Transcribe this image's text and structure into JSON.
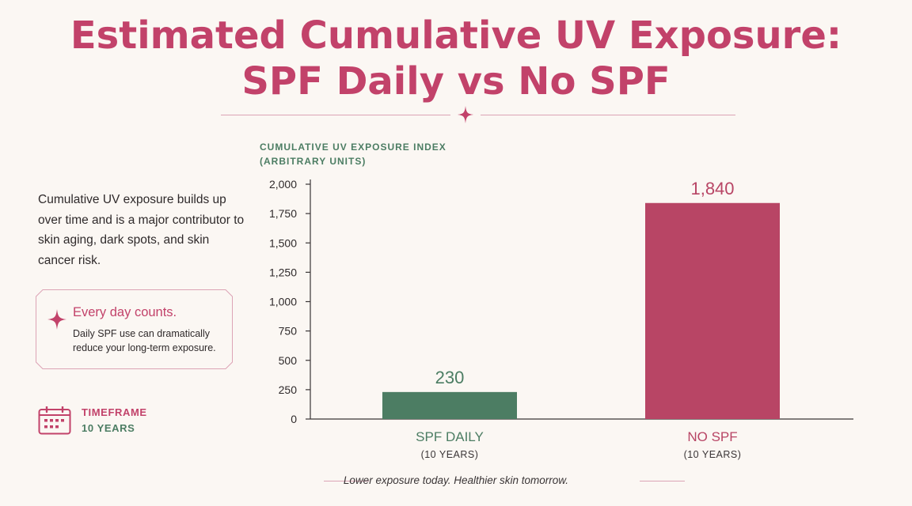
{
  "title_line1": "Estimated Cumulative UV Exposure:",
  "title_line2": "SPF Daily vs No SPF",
  "intro_text": "Cumulative UV exposure builds up over time and is a major contributor to skin aging, dark spots, and skin cancer  risk.",
  "callout": {
    "title": "Every day counts.",
    "text": "Daily SPF use can dramatically reduce your long-term exposure.",
    "icon": "sparkle-icon"
  },
  "timeframe": {
    "label": "TIMEFRAME",
    "value": "10 YEARS",
    "icon": "calendar-icon"
  },
  "footer_text": "Lower exposure today. Healthier skin tomorrow.",
  "colors": {
    "accent": "#c2426a",
    "green": "#4c7d63",
    "bar_no_spf": "#b84565",
    "background": "#fbf7f3"
  },
  "chart_data": {
    "type": "bar",
    "ylabel_line1": "CUMULATIVE UV EXPOSURE INDEX",
    "ylabel_line2": "(ARBITRARY UNITS)",
    "ylim": [
      0,
      2000
    ],
    "yticks": [
      0,
      250,
      500,
      750,
      1000,
      1250,
      1500,
      1750,
      2000
    ],
    "ytick_labels": [
      "0",
      "250",
      "500",
      "750",
      "1,000",
      "1,250",
      "1,500",
      "1,750",
      "2,000"
    ],
    "grid": false,
    "categories": [
      "SPF DAILY",
      "NO SPF"
    ],
    "category_sublabels": [
      "(10 YEARS)",
      "(10 YEARS)"
    ],
    "values": [
      230,
      1840
    ],
    "value_labels": [
      "230",
      "1,840"
    ],
    "bar_colors": [
      "#4c7d63",
      "#b84565"
    ],
    "label_colors": [
      "#4c7d63",
      "#b84565"
    ]
  }
}
